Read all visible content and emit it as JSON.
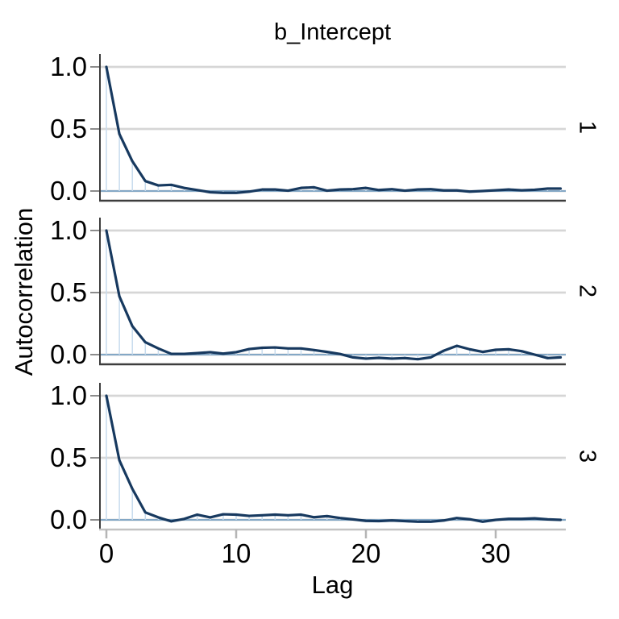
{
  "figure": {
    "kind": "mcmc-autocorrelation-facet-plot",
    "facet_label_side": "right"
  },
  "chart_data": {
    "type": "line",
    "title": "b_Intercept",
    "xlabel": "Lag",
    "ylabel": "Autocorrelation",
    "x_ticks": [
      0,
      10,
      20,
      30
    ],
    "x_tick_labels": [
      "0",
      "10",
      "20",
      "30"
    ],
    "y_ticks": [
      1.0,
      0.5,
      0.0
    ],
    "y_tick_labels": [
      "1.0",
      "0.5",
      "0.0"
    ],
    "xlim": [
      -0.6,
      35.4
    ],
    "ylim": [
      -0.085,
      1.105
    ],
    "grid": "horizontal-only",
    "legend": "none",
    "zero_reference_line": 0.0,
    "lags": [
      0,
      1,
      2,
      3,
      4,
      5,
      6,
      7,
      8,
      9,
      10,
      11,
      12,
      13,
      14,
      15,
      16,
      17,
      18,
      19,
      20,
      21,
      22,
      23,
      24,
      25,
      26,
      27,
      28,
      29,
      30,
      31,
      32,
      33,
      34,
      35
    ],
    "facets": [
      {
        "label": "1",
        "values": [
          1.0,
          0.46,
          0.24,
          0.08,
          0.045,
          0.05,
          0.025,
          0.008,
          -0.01,
          -0.015,
          -0.015,
          -0.005,
          0.012,
          0.012,
          0.003,
          0.025,
          0.03,
          0.003,
          0.012,
          0.015,
          0.025,
          0.008,
          0.015,
          0.003,
          0.012,
          0.015,
          0.005,
          0.005,
          -0.005,
          0.0,
          0.006,
          0.012,
          0.006,
          0.01,
          0.02,
          0.02
        ]
      },
      {
        "label": "2",
        "values": [
          1.0,
          0.47,
          0.23,
          0.1,
          0.05,
          0.006,
          0.006,
          0.012,
          0.02,
          0.008,
          0.02,
          0.045,
          0.055,
          0.058,
          0.05,
          0.05,
          0.037,
          0.022,
          0.005,
          -0.022,
          -0.032,
          -0.026,
          -0.032,
          -0.028,
          -0.037,
          -0.022,
          0.032,
          0.071,
          0.043,
          0.022,
          0.039,
          0.043,
          0.028,
          0.0,
          -0.028,
          -0.022
        ]
      },
      {
        "label": "3",
        "values": [
          1.0,
          0.48,
          0.25,
          0.06,
          0.02,
          -0.012,
          0.008,
          0.042,
          0.02,
          0.045,
          0.042,
          0.032,
          0.037,
          0.042,
          0.037,
          0.042,
          0.021,
          0.03,
          0.015,
          0.004,
          -0.008,
          -0.01,
          -0.005,
          -0.01,
          -0.015,
          -0.015,
          -0.005,
          0.015,
          0.005,
          -0.015,
          0.0,
          0.008,
          0.008,
          0.012,
          0.004,
          0.0
        ]
      }
    ]
  },
  "colors": {
    "acf_line": "#17395f",
    "lag_stick": "#c7dbed",
    "zero_line": "#84a8c6",
    "gridline": "#d6d6d6",
    "axis_dark": "#3d3d3d",
    "axis_light": "#c2c2c2",
    "y_tick_mark": "#8c8c8c",
    "x_tick_mark": "#b5b5b5",
    "text": "#000000"
  }
}
